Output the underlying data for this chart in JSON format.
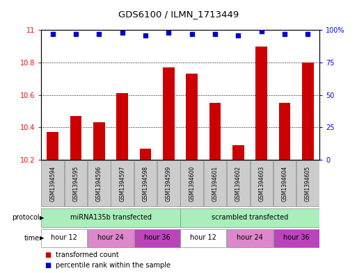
{
  "title": "GDS6100 / ILMN_1713449",
  "samples": [
    "GSM1394594",
    "GSM1394595",
    "GSM1394596",
    "GSM1394597",
    "GSM1394598",
    "GSM1394599",
    "GSM1394600",
    "GSM1394601",
    "GSM1394602",
    "GSM1394603",
    "GSM1394604",
    "GSM1394605"
  ],
  "bar_values": [
    10.37,
    10.47,
    10.43,
    10.61,
    10.27,
    10.77,
    10.73,
    10.55,
    10.29,
    10.9,
    10.55,
    10.8
  ],
  "percentile_values": [
    97,
    97,
    97,
    98,
    96,
    98,
    97,
    97,
    96,
    99,
    97,
    97
  ],
  "bar_color": "#CC0000",
  "percentile_color": "#0000CC",
  "ylim_left": [
    10.2,
    11.0
  ],
  "ylim_right": [
    0,
    100
  ],
  "yticks_left": [
    10.2,
    10.4,
    10.6,
    10.8,
    11.0
  ],
  "ytick_labels_left": [
    "10.2",
    "10.4",
    "10.6",
    "10.8",
    "11"
  ],
  "yticks_right": [
    0,
    25,
    50,
    75,
    100
  ],
  "ytick_labels_right": [
    "0",
    "25",
    "50",
    "75",
    "100%"
  ],
  "background_color": "#FFFFFF",
  "bar_width": 0.5,
  "sample_bg_color": "#CCCCCC",
  "proto_groups": [
    {
      "label": "miRNA135b transfected",
      "start": 0,
      "end": 6,
      "color": "#AAEEBB"
    },
    {
      "label": "scrambled transfected",
      "start": 6,
      "end": 12,
      "color": "#AAEEBB"
    }
  ],
  "time_groups": [
    {
      "label": "hour 12",
      "start": 0,
      "end": 2,
      "color": "#FFFFFF"
    },
    {
      "label": "hour 24",
      "start": 2,
      "end": 4,
      "color": "#DD88CC"
    },
    {
      "label": "hour 36",
      "start": 4,
      "end": 6,
      "color": "#BB44BB"
    },
    {
      "label": "hour 12",
      "start": 6,
      "end": 8,
      "color": "#FFFFFF"
    },
    {
      "label": "hour 24",
      "start": 8,
      "end": 10,
      "color": "#DD88CC"
    },
    {
      "label": "hour 36",
      "start": 10,
      "end": 12,
      "color": "#BB44BB"
    }
  ],
  "legend_items": [
    {
      "label": "transformed count",
      "color": "#CC0000"
    },
    {
      "label": "percentile rank within the sample",
      "color": "#0000CC"
    }
  ]
}
